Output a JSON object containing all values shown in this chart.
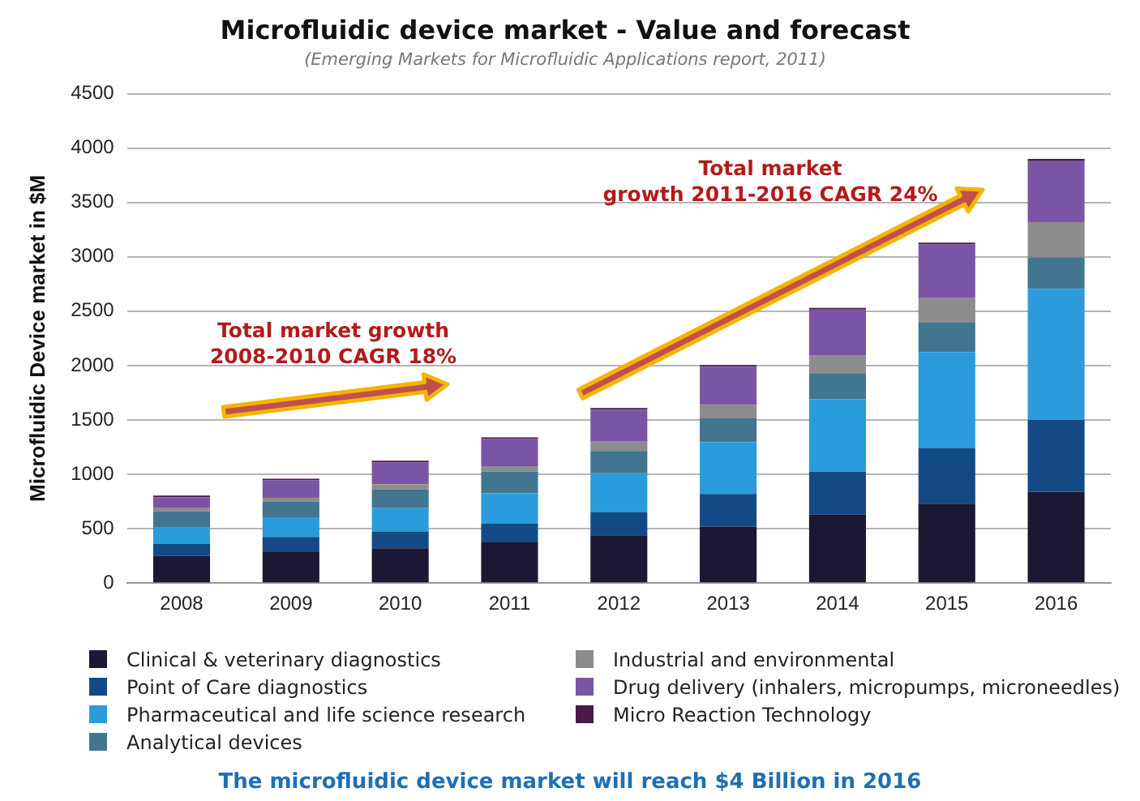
{
  "chart_data": {
    "type": "bar",
    "stacked": true,
    "title": "Microfluidic device market - Value and forecast",
    "subtitle": "(Emerging Markets for Microfluidic Applications report, 2011)",
    "ylabel": "Microfluidic Device market in $M",
    "categories": [
      "2008",
      "2009",
      "2010",
      "2011",
      "2012",
      "2013",
      "2014",
      "2015",
      "2016"
    ],
    "series": [
      {
        "name": "Clinical & veterinary diagnostics",
        "color": "#1c1733",
        "values": [
          250,
          285,
          320,
          375,
          440,
          520,
          630,
          730,
          840
        ]
      },
      {
        "name": "Point of Care diagnostics",
        "color": "#134a85",
        "values": [
          110,
          140,
          155,
          170,
          210,
          300,
          395,
          510,
          660
        ]
      },
      {
        "name": "Pharmaceutical and life science research",
        "color": "#2a9bdc",
        "values": [
          155,
          180,
          215,
          280,
          360,
          475,
          665,
          885,
          1205
        ]
      },
      {
        "name": "Analytical devices",
        "color": "#42758f",
        "values": [
          145,
          145,
          170,
          200,
          205,
          220,
          240,
          270,
          290
        ]
      },
      {
        "name": "Industrial and environmental",
        "color": "#8c8c8c",
        "values": [
          30,
          35,
          50,
          50,
          85,
          125,
          160,
          225,
          325
        ]
      },
      {
        "name": "Drug delivery (inhalers, micropumps, microneedles)",
        "color": "#7b55a5",
        "values": [
          100,
          160,
          200,
          250,
          295,
          350,
          425,
          495,
          560
        ]
      },
      {
        "name": "Micro Reaction Technology",
        "color": "#4a1a4a",
        "values": [
          15,
          15,
          15,
          15,
          15,
          15,
          15,
          15,
          20
        ]
      }
    ],
    "ylim": [
      0,
      4500
    ],
    "yticks": [
      0,
      500,
      1000,
      1500,
      2000,
      2500,
      3000,
      3500,
      4000,
      4500
    ],
    "grid": "y",
    "legend": "bottom",
    "annotations": [
      "Total market growth\n2008-2010 CAGR 18%",
      "Total market\ngrowth 2011-2016 CAGR 24%",
      "The microfluidic device market will reach $4 Billion in 2016"
    ]
  }
}
